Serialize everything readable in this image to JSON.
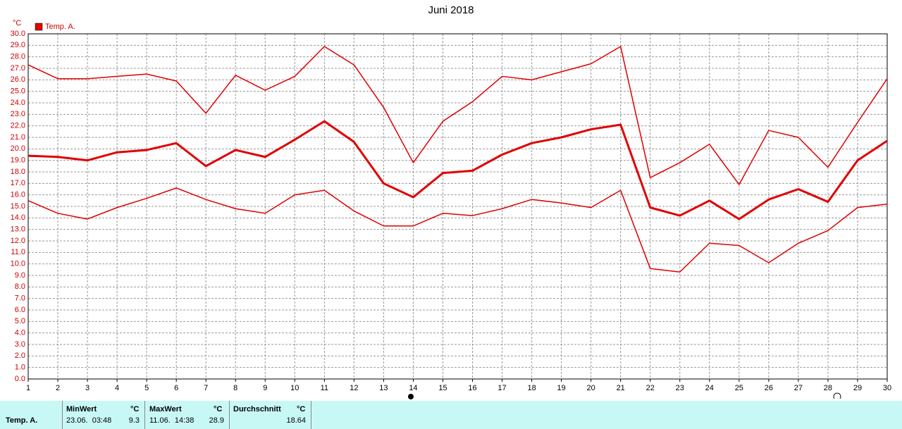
{
  "chart_data": {
    "type": "line",
    "title": "Juni 2018",
    "y_label": "°C",
    "x": [
      1,
      2,
      3,
      4,
      5,
      6,
      7,
      8,
      9,
      10,
      11,
      12,
      13,
      14,
      15,
      16,
      17,
      18,
      19,
      20,
      21,
      22,
      23,
      24,
      25,
      26,
      27,
      28,
      29,
      30
    ],
    "xlim": [
      1,
      30
    ],
    "xticks": [
      1,
      2,
      3,
      4,
      5,
      6,
      7,
      8,
      9,
      10,
      11,
      12,
      13,
      14,
      15,
      16,
      17,
      18,
      19,
      20,
      21,
      22,
      23,
      24,
      25,
      26,
      27,
      28,
      29,
      30
    ],
    "ylim": [
      0,
      30
    ],
    "yticks": [
      {
        "value": 0,
        "label": "0.0"
      },
      {
        "value": 1,
        "label": "1.0"
      },
      {
        "value": 2,
        "label": "2.0"
      },
      {
        "value": 3,
        "label": "3.0"
      },
      {
        "value": 4,
        "label": "4.0"
      },
      {
        "value": 5,
        "label": "5.0"
      },
      {
        "value": 6,
        "label": "6.0"
      },
      {
        "value": 7,
        "label": "7.0"
      },
      {
        "value": 8,
        "label": "8.0"
      },
      {
        "value": 9,
        "label": "9.0"
      },
      {
        "value": 10,
        "label": "10.0"
      },
      {
        "value": 11,
        "label": "11.0"
      },
      {
        "value": 12,
        "label": "12.0"
      },
      {
        "value": 13,
        "label": "13.0"
      },
      {
        "value": 14,
        "label": "14.0"
      },
      {
        "value": 15,
        "label": "15.0"
      },
      {
        "value": 16,
        "label": "16.0"
      },
      {
        "value": 17,
        "label": "17.0"
      },
      {
        "value": 18,
        "label": "18.0"
      },
      {
        "value": 19,
        "label": "19.0"
      },
      {
        "value": 20,
        "label": "20.0"
      },
      {
        "value": 21,
        "label": "21.0"
      },
      {
        "value": 22,
        "label": "22.0"
      },
      {
        "value": 23,
        "label": "23.0"
      },
      {
        "value": 24,
        "label": "24.0"
      },
      {
        "value": 25,
        "label": "25.0"
      },
      {
        "value": 26,
        "label": "26.0"
      },
      {
        "value": 27,
        "label": "27.0"
      },
      {
        "value": 28,
        "label": "28.0"
      },
      {
        "value": 29,
        "label": "29.0"
      },
      {
        "value": 30,
        "label": "30.0"
      }
    ],
    "grid": true,
    "series": [
      {
        "color": "#e00000",
        "width": 1.5,
        "values": [
          27.3,
          26.1,
          26.1,
          26.3,
          26.5,
          25.9,
          23.1,
          26.4,
          25.1,
          26.3,
          28.9,
          27.3,
          23.6,
          18.8,
          22.4,
          24.1,
          26.3,
          26.0,
          26.7,
          27.4,
          28.9,
          17.5,
          18.8,
          20.4,
          16.9,
          21.6,
          21.0,
          18.4,
          22.3,
          26.1
        ]
      },
      {
        "name": "Temp. A.",
        "color": "#e00000",
        "width": 3,
        "values": [
          19.4,
          19.3,
          19.0,
          19.7,
          19.9,
          20.5,
          18.5,
          19.9,
          19.3,
          20.8,
          22.4,
          20.6,
          17.0,
          15.8,
          17.9,
          18.1,
          19.5,
          20.5,
          21.0,
          21.7,
          22.1,
          14.9,
          14.2,
          15.5,
          13.9,
          15.6,
          16.5,
          15.4,
          19.0,
          20.7
        ]
      },
      {
        "color": "#e00000",
        "width": 1.5,
        "values": [
          15.5,
          14.4,
          13.9,
          14.9,
          15.7,
          16.6,
          15.6,
          14.8,
          14.4,
          16.0,
          16.4,
          14.6,
          13.3,
          13.3,
          14.4,
          14.2,
          14.8,
          15.6,
          15.3,
          14.9,
          16.4,
          9.6,
          9.3,
          11.8,
          11.6,
          10.1,
          11.8,
          12.9,
          14.9,
          15.2
        ]
      }
    ]
  },
  "summary": {
    "row_label": "Temp. A.",
    "columns": [
      {
        "header": "MinWert",
        "unit": "°C",
        "time": "23.06.  03:48",
        "value": 9.3
      },
      {
        "header": "MaxWert",
        "unit": "°C",
        "time": "11.06.  14:38",
        "value": 28.9
      },
      {
        "header": "Durchschnitt",
        "unit": "°C",
        "value": 18.64
      }
    ]
  }
}
